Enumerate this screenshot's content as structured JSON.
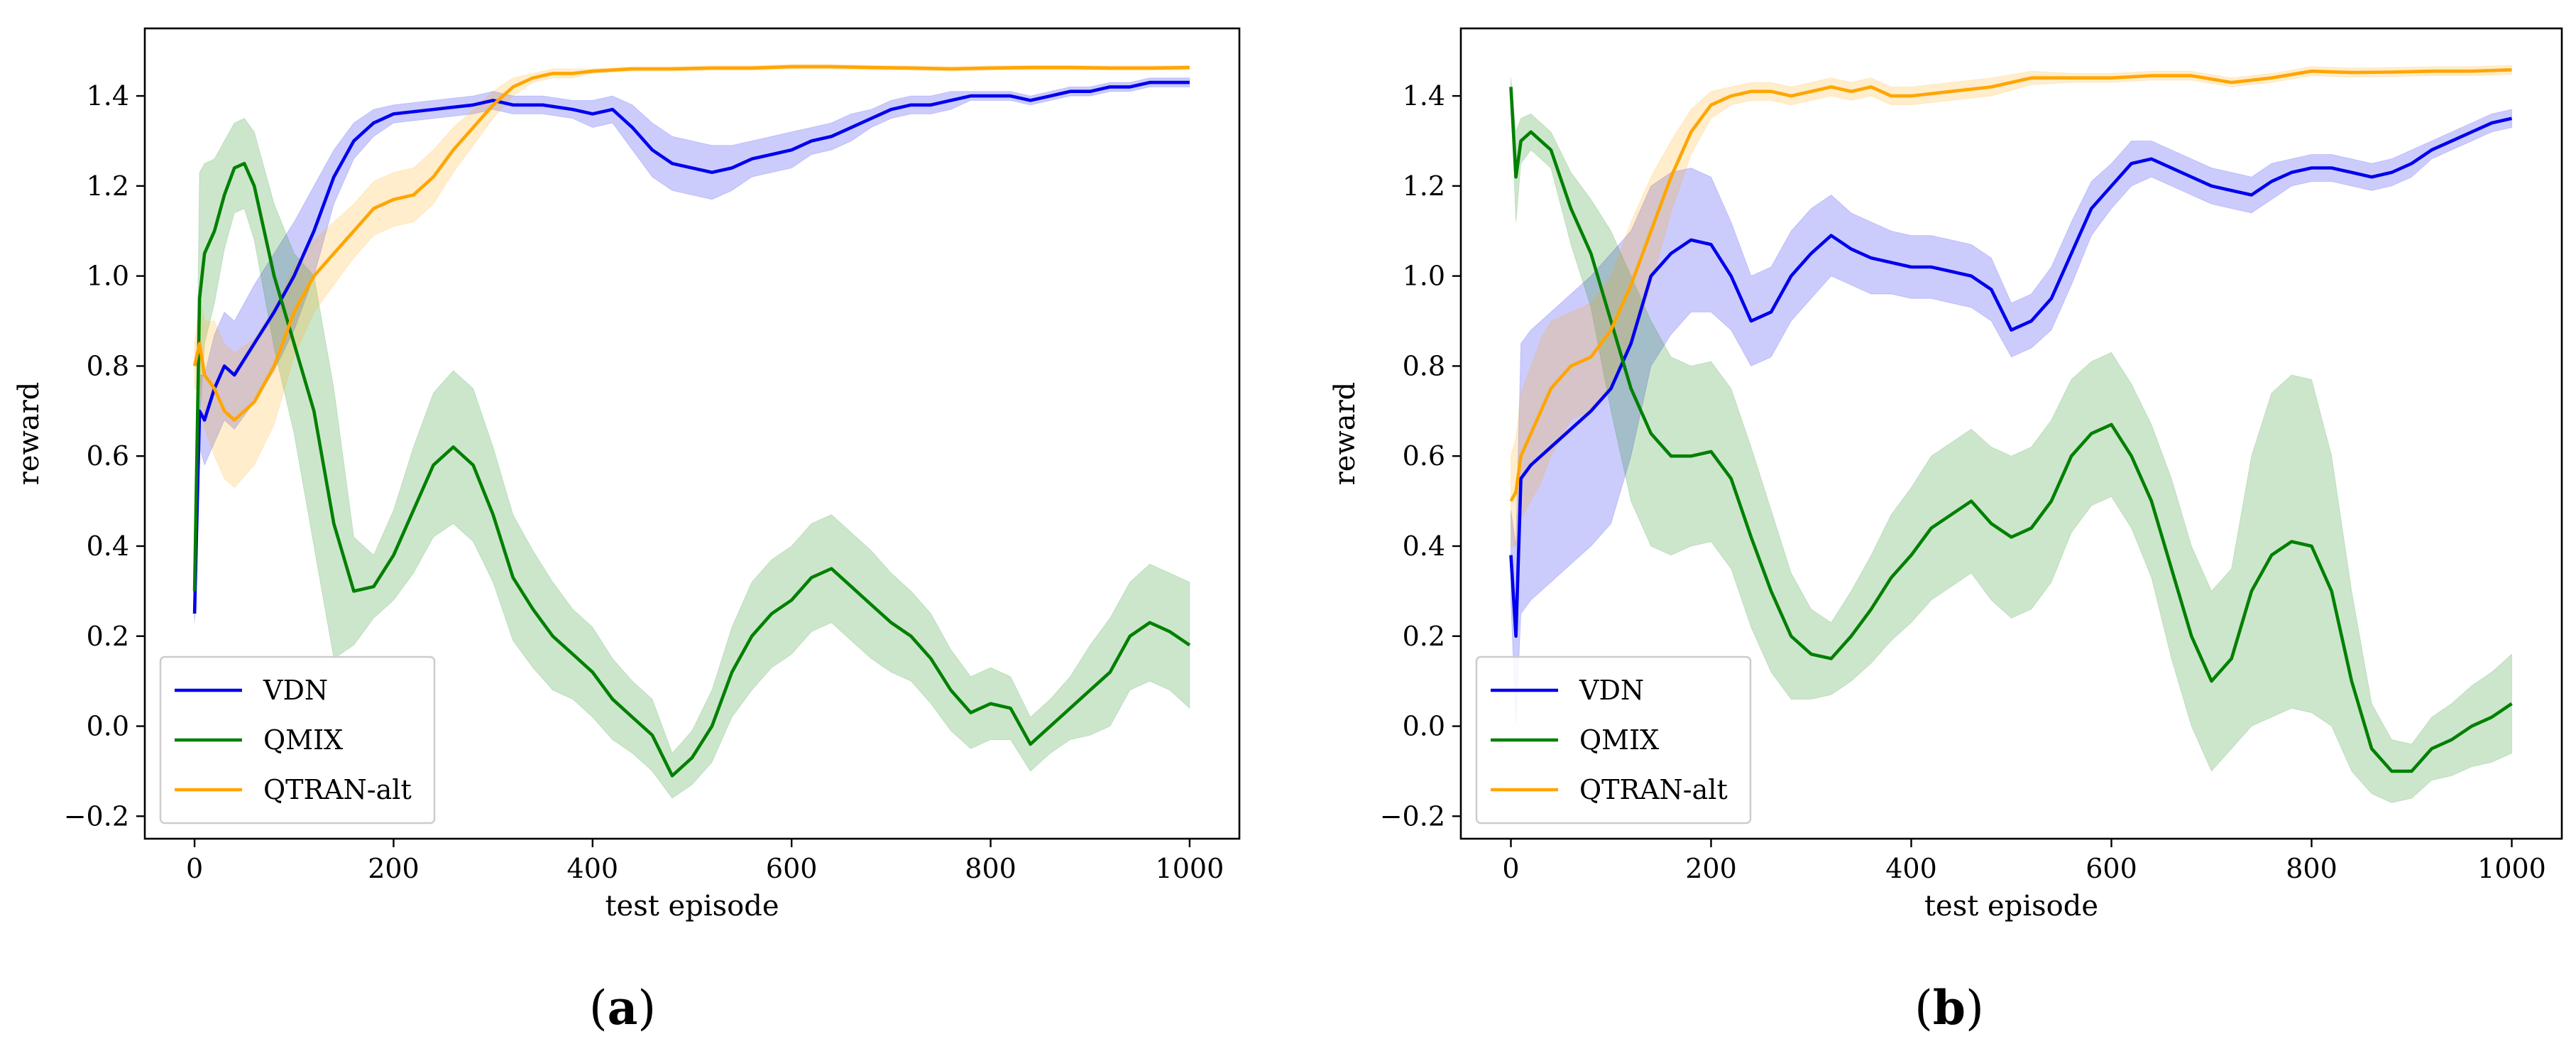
{
  "chart_data": [
    {
      "type": "line",
      "panel_label": "a",
      "title": "",
      "xlabel": "test episode",
      "ylabel": "reward",
      "xlim": [
        -50,
        1050
      ],
      "ylim": [
        -0.25,
        1.55
      ],
      "xticks": [
        "0",
        "200",
        "400",
        "600",
        "800",
        "1000"
      ],
      "xtick_values": [
        0,
        200,
        400,
        600,
        800,
        1000
      ],
      "yticks": [
        "−0.2",
        "0.0",
        "0.2",
        "0.4",
        "0.6",
        "0.8",
        "1.0",
        "1.2",
        "1.4"
      ],
      "ytick_values": [
        -0.2,
        0.0,
        0.2,
        0.4,
        0.6,
        0.8,
        1.0,
        1.2,
        1.4
      ],
      "legend_position": "lower-left",
      "series": [
        {
          "name": "VDN",
          "color": "#0000ee",
          "x": [
            0,
            5,
            10,
            20,
            30,
            40,
            60,
            80,
            100,
            120,
            140,
            160,
            180,
            200,
            240,
            280,
            300,
            320,
            350,
            380,
            400,
            420,
            440,
            460,
            480,
            500,
            520,
            540,
            560,
            580,
            600,
            620,
            640,
            660,
            680,
            700,
            720,
            740,
            760,
            780,
            800,
            820,
            840,
            860,
            880,
            900,
            920,
            940,
            960,
            980,
            1000
          ],
          "y": [
            0.25,
            0.7,
            0.68,
            0.75,
            0.8,
            0.78,
            0.85,
            0.92,
            1.0,
            1.1,
            1.22,
            1.3,
            1.34,
            1.36,
            1.37,
            1.38,
            1.39,
            1.38,
            1.38,
            1.37,
            1.36,
            1.37,
            1.33,
            1.28,
            1.25,
            1.24,
            1.23,
            1.24,
            1.26,
            1.27,
            1.28,
            1.3,
            1.31,
            1.33,
            1.35,
            1.37,
            1.38,
            1.38,
            1.39,
            1.4,
            1.4,
            1.4,
            1.39,
            1.4,
            1.41,
            1.41,
            1.42,
            1.42,
            1.43,
            1.43,
            1.43
          ],
          "band": [
            0.02,
            0.08,
            0.1,
            0.12,
            0.12,
            0.12,
            0.13,
            0.13,
            0.12,
            0.1,
            0.06,
            0.04,
            0.03,
            0.02,
            0.02,
            0.02,
            0.02,
            0.02,
            0.02,
            0.02,
            0.03,
            0.03,
            0.05,
            0.06,
            0.06,
            0.06,
            0.06,
            0.05,
            0.04,
            0.04,
            0.04,
            0.03,
            0.03,
            0.03,
            0.02,
            0.02,
            0.02,
            0.02,
            0.02,
            0.01,
            0.01,
            0.01,
            0.01,
            0.01,
            0.01,
            0.01,
            0.01,
            0.01,
            0.01,
            0.01,
            0.01
          ]
        },
        {
          "name": "QMIX",
          "color": "#008000",
          "x": [
            0,
            5,
            10,
            20,
            30,
            40,
            50,
            60,
            70,
            80,
            100,
            120,
            140,
            160,
            180,
            200,
            220,
            240,
            260,
            280,
            300,
            320,
            340,
            360,
            380,
            400,
            420,
            440,
            460,
            480,
            500,
            520,
            540,
            560,
            580,
            600,
            620,
            640,
            660,
            680,
            700,
            720,
            740,
            760,
            780,
            800,
            820,
            840,
            860,
            880,
            900,
            920,
            940,
            960,
            980,
            1000
          ],
          "y": [
            0.3,
            0.95,
            1.05,
            1.1,
            1.18,
            1.24,
            1.25,
            1.2,
            1.1,
            1.0,
            0.85,
            0.7,
            0.45,
            0.3,
            0.31,
            0.38,
            0.48,
            0.58,
            0.62,
            0.58,
            0.47,
            0.33,
            0.26,
            0.2,
            0.16,
            0.12,
            0.06,
            0.02,
            -0.02,
            -0.11,
            -0.07,
            0.0,
            0.12,
            0.2,
            0.25,
            0.28,
            0.33,
            0.35,
            0.31,
            0.27,
            0.23,
            0.2,
            0.15,
            0.08,
            0.03,
            0.05,
            0.04,
            -0.04,
            0.0,
            0.04,
            0.08,
            0.12,
            0.2,
            0.23,
            0.21,
            0.18
          ],
          "band": [
            0.06,
            0.28,
            0.2,
            0.16,
            0.12,
            0.1,
            0.1,
            0.12,
            0.14,
            0.16,
            0.2,
            0.3,
            0.3,
            0.12,
            0.07,
            0.1,
            0.14,
            0.16,
            0.17,
            0.17,
            0.15,
            0.14,
            0.13,
            0.12,
            0.1,
            0.1,
            0.09,
            0.08,
            0.08,
            0.05,
            0.06,
            0.08,
            0.1,
            0.12,
            0.12,
            0.12,
            0.12,
            0.12,
            0.12,
            0.12,
            0.11,
            0.1,
            0.1,
            0.09,
            0.08,
            0.08,
            0.07,
            0.06,
            0.06,
            0.07,
            0.1,
            0.12,
            0.12,
            0.13,
            0.13,
            0.14
          ]
        },
        {
          "name": "QTRAN-alt",
          "color": "#ffa500",
          "x": [
            0,
            5,
            10,
            20,
            30,
            40,
            60,
            80,
            100,
            120,
            140,
            160,
            180,
            200,
            220,
            240,
            260,
            280,
            300,
            320,
            340,
            360,
            380,
            400,
            440,
            480,
            520,
            560,
            600,
            640,
            680,
            720,
            760,
            800,
            840,
            880,
            920,
            960,
            1000
          ],
          "y": [
            0.8,
            0.85,
            0.78,
            0.75,
            0.7,
            0.68,
            0.72,
            0.8,
            0.92,
            1.0,
            1.05,
            1.1,
            1.15,
            1.17,
            1.18,
            1.22,
            1.28,
            1.33,
            1.38,
            1.42,
            1.44,
            1.45,
            1.45,
            1.455,
            1.46,
            1.46,
            1.462,
            1.462,
            1.465,
            1.465,
            1.463,
            1.462,
            1.46,
            1.462,
            1.463,
            1.463,
            1.462,
            1.462,
            1.463
          ],
          "band": [
            0.05,
            0.1,
            0.12,
            0.15,
            0.15,
            0.15,
            0.14,
            0.13,
            0.1,
            0.08,
            0.07,
            0.06,
            0.06,
            0.06,
            0.06,
            0.06,
            0.05,
            0.04,
            0.03,
            0.02,
            0.01,
            0.01,
            0.01,
            0.005,
            0.005,
            0.005,
            0.005,
            0.005,
            0.005,
            0.005,
            0.005,
            0.005,
            0.005,
            0.005,
            0.005,
            0.005,
            0.005,
            0.005,
            0.005
          ]
        }
      ]
    },
    {
      "type": "line",
      "panel_label": "b",
      "title": "",
      "xlabel": "test episode",
      "ylabel": "reward",
      "xlim": [
        -50,
        1050
      ],
      "ylim": [
        -0.25,
        1.55
      ],
      "xticks": [
        "0",
        "200",
        "400",
        "600",
        "800",
        "1000"
      ],
      "xtick_values": [
        0,
        200,
        400,
        600,
        800,
        1000
      ],
      "yticks": [
        "−0.2",
        "0.0",
        "0.2",
        "0.4",
        "0.6",
        "0.8",
        "1.0",
        "1.2",
        "1.4"
      ],
      "ytick_values": [
        -0.2,
        0.0,
        0.2,
        0.4,
        0.6,
        0.8,
        1.0,
        1.2,
        1.4
      ],
      "legend_position": "lower-left",
      "series": [
        {
          "name": "VDN",
          "color": "#0000ee",
          "x": [
            0,
            5,
            10,
            20,
            40,
            60,
            80,
            100,
            120,
            140,
            160,
            180,
            200,
            220,
            240,
            260,
            280,
            300,
            320,
            340,
            360,
            380,
            400,
            420,
            440,
            460,
            480,
            500,
            520,
            540,
            560,
            580,
            600,
            620,
            640,
            660,
            680,
            700,
            720,
            740,
            760,
            780,
            800,
            820,
            840,
            860,
            880,
            900,
            920,
            940,
            960,
            980,
            1000
          ],
          "y": [
            0.38,
            0.2,
            0.55,
            0.58,
            0.62,
            0.66,
            0.7,
            0.75,
            0.85,
            1.0,
            1.05,
            1.08,
            1.07,
            1.0,
            0.9,
            0.92,
            1.0,
            1.05,
            1.09,
            1.06,
            1.04,
            1.03,
            1.02,
            1.02,
            1.01,
            1.0,
            0.97,
            0.88,
            0.9,
            0.95,
            1.05,
            1.15,
            1.2,
            1.25,
            1.26,
            1.24,
            1.22,
            1.2,
            1.19,
            1.18,
            1.21,
            1.23,
            1.24,
            1.24,
            1.23,
            1.22,
            1.23,
            1.25,
            1.28,
            1.3,
            1.32,
            1.34,
            1.35
          ],
          "band": [
            0.1,
            0.2,
            0.3,
            0.3,
            0.3,
            0.3,
            0.3,
            0.3,
            0.25,
            0.2,
            0.18,
            0.16,
            0.15,
            0.12,
            0.1,
            0.1,
            0.1,
            0.1,
            0.09,
            0.08,
            0.08,
            0.07,
            0.07,
            0.07,
            0.07,
            0.07,
            0.07,
            0.06,
            0.06,
            0.07,
            0.07,
            0.06,
            0.05,
            0.05,
            0.04,
            0.04,
            0.04,
            0.04,
            0.04,
            0.04,
            0.04,
            0.03,
            0.03,
            0.03,
            0.03,
            0.03,
            0.03,
            0.03,
            0.02,
            0.02,
            0.02,
            0.02,
            0.02
          ]
        },
        {
          "name": "QMIX",
          "color": "#008000",
          "x": [
            0,
            5,
            10,
            20,
            30,
            40,
            60,
            80,
            100,
            120,
            140,
            160,
            180,
            200,
            220,
            240,
            260,
            280,
            300,
            320,
            340,
            360,
            380,
            400,
            420,
            440,
            460,
            480,
            500,
            520,
            540,
            560,
            580,
            600,
            620,
            640,
            660,
            680,
            700,
            720,
            740,
            760,
            780,
            800,
            820,
            840,
            860,
            880,
            900,
            920,
            940,
            960,
            980,
            1000
          ],
          "y": [
            1.42,
            1.22,
            1.3,
            1.32,
            1.3,
            1.28,
            1.15,
            1.05,
            0.9,
            0.75,
            0.65,
            0.6,
            0.6,
            0.61,
            0.55,
            0.42,
            0.3,
            0.2,
            0.16,
            0.15,
            0.2,
            0.26,
            0.33,
            0.38,
            0.44,
            0.47,
            0.5,
            0.45,
            0.42,
            0.44,
            0.5,
            0.6,
            0.65,
            0.67,
            0.6,
            0.5,
            0.35,
            0.2,
            0.1,
            0.15,
            0.3,
            0.38,
            0.41,
            0.4,
            0.3,
            0.1,
            -0.05,
            -0.1,
            -0.1,
            -0.05,
            -0.03,
            0.0,
            0.02,
            0.05
          ],
          "band": [
            0.02,
            0.1,
            0.05,
            0.04,
            0.04,
            0.04,
            0.08,
            0.12,
            0.2,
            0.25,
            0.25,
            0.22,
            0.2,
            0.2,
            0.2,
            0.2,
            0.18,
            0.14,
            0.1,
            0.08,
            0.1,
            0.12,
            0.14,
            0.15,
            0.16,
            0.16,
            0.16,
            0.17,
            0.18,
            0.18,
            0.18,
            0.17,
            0.16,
            0.16,
            0.16,
            0.17,
            0.2,
            0.2,
            0.2,
            0.2,
            0.3,
            0.36,
            0.37,
            0.37,
            0.3,
            0.2,
            0.1,
            0.07,
            0.06,
            0.07,
            0.08,
            0.09,
            0.1,
            0.11
          ]
        },
        {
          "name": "QTRAN-alt",
          "color": "#ffa500",
          "x": [
            0,
            5,
            10,
            20,
            30,
            40,
            60,
            80,
            100,
            120,
            140,
            160,
            180,
            200,
            220,
            240,
            260,
            280,
            300,
            320,
            340,
            360,
            380,
            400,
            440,
            480,
            520,
            560,
            600,
            640,
            680,
            720,
            760,
            800,
            840,
            880,
            920,
            960,
            1000
          ],
          "y": [
            0.5,
            0.52,
            0.6,
            0.65,
            0.7,
            0.75,
            0.8,
            0.82,
            0.88,
            0.98,
            1.1,
            1.22,
            1.32,
            1.38,
            1.4,
            1.41,
            1.41,
            1.4,
            1.41,
            1.42,
            1.41,
            1.42,
            1.4,
            1.4,
            1.41,
            1.42,
            1.44,
            1.44,
            1.44,
            1.445,
            1.445,
            1.43,
            1.44,
            1.455,
            1.452,
            1.453,
            1.455,
            1.455,
            1.458
          ],
          "band": [
            0.1,
            0.12,
            0.14,
            0.15,
            0.16,
            0.15,
            0.12,
            0.12,
            0.12,
            0.14,
            0.12,
            0.08,
            0.05,
            0.03,
            0.02,
            0.02,
            0.02,
            0.02,
            0.02,
            0.02,
            0.02,
            0.02,
            0.02,
            0.02,
            0.02,
            0.02,
            0.015,
            0.01,
            0.01,
            0.01,
            0.01,
            0.01,
            0.01,
            0.01,
            0.01,
            0.01,
            0.01,
            0.01,
            0.01
          ]
        }
      ]
    }
  ]
}
